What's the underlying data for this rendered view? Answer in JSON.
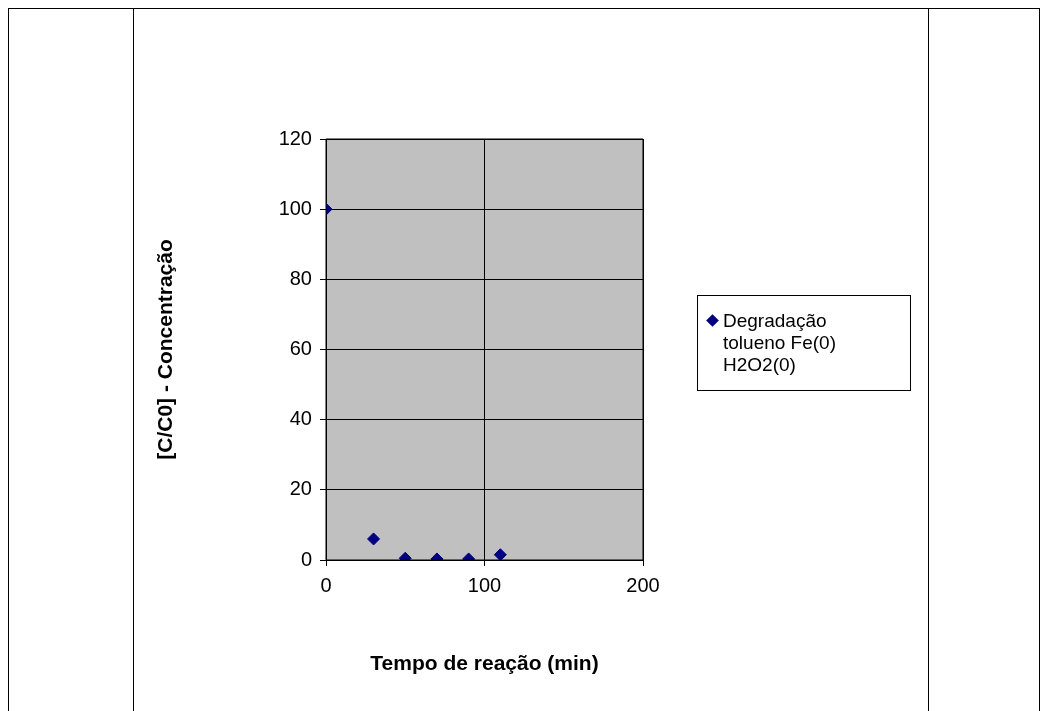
{
  "chart_data": {
    "type": "scatter",
    "xlabel": "Tempo de reação (min)",
    "ylabel": "[C/C0] - Concentração",
    "series": [
      {
        "name": "Degradação tolueno Fe(0) H2O2(0)",
        "color": "#000080",
        "x": [
          0,
          30,
          50,
          70,
          90,
          110
        ],
        "values": [
          100,
          6,
          0.5,
          0.3,
          0.3,
          1.5
        ]
      }
    ],
    "xlim": [
      0,
      200
    ],
    "xticks": [
      0,
      100,
      200
    ],
    "ylim": [
      0,
      120
    ],
    "yticks": [
      0,
      20,
      40,
      60,
      80,
      100,
      120
    ],
    "grid": true,
    "legend": "right",
    "marker": "diamond"
  }
}
